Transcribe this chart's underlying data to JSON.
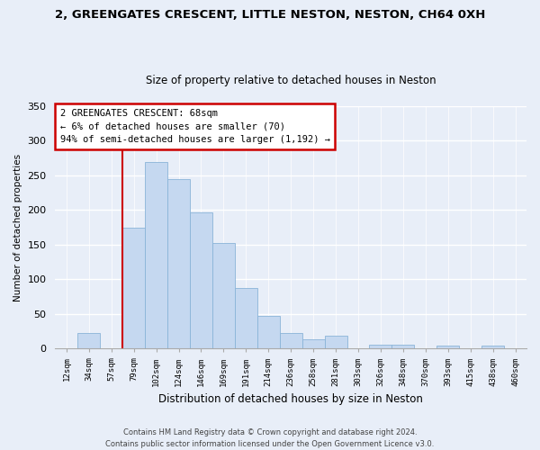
{
  "title": "2, GREENGATES CRESCENT, LITTLE NESTON, NESTON, CH64 0XH",
  "subtitle": "Size of property relative to detached houses in Neston",
  "xlabel": "Distribution of detached houses by size in Neston",
  "ylabel": "Number of detached properties",
  "bar_color": "#c5d8f0",
  "bar_edge_color": "#8ab4d8",
  "bin_labels": [
    "12sqm",
    "34sqm",
    "57sqm",
    "79sqm",
    "102sqm",
    "124sqm",
    "146sqm",
    "169sqm",
    "191sqm",
    "214sqm",
    "236sqm",
    "258sqm",
    "281sqm",
    "303sqm",
    "326sqm",
    "348sqm",
    "370sqm",
    "393sqm",
    "415sqm",
    "438sqm",
    "460sqm"
  ],
  "bar_values": [
    0,
    22,
    0,
    175,
    270,
    245,
    197,
    153,
    88,
    47,
    23,
    13,
    19,
    0,
    6,
    6,
    0,
    5,
    0,
    5,
    0
  ],
  "vline_x_idx": 3,
  "vline_color": "#cc0000",
  "ylim": [
    0,
    350
  ],
  "yticks": [
    0,
    50,
    100,
    150,
    200,
    250,
    300,
    350
  ],
  "annotation_title": "2 GREENGATES CRESCENT: 68sqm",
  "annotation_line1": "← 6% of detached houses are smaller (70)",
  "annotation_line2": "94% of semi-detached houses are larger (1,192) →",
  "annotation_box_color": "#ffffff",
  "annotation_box_edge": "#cc0000",
  "footer_line1": "Contains HM Land Registry data © Crown copyright and database right 2024.",
  "footer_line2": "Contains public sector information licensed under the Open Government Licence v3.0.",
  "background_color": "#e8eef8",
  "plot_background": "#e8eef8",
  "grid_color": "#ffffff",
  "title_fontsize": 9.5,
  "subtitle_fontsize": 8.5
}
